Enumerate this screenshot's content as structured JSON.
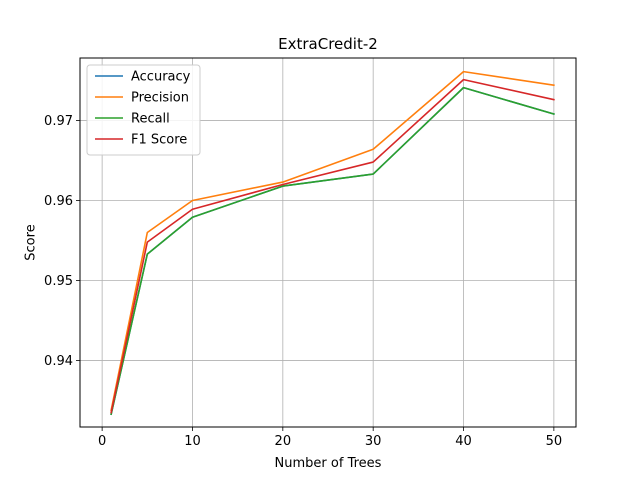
{
  "chart_data": {
    "type": "line",
    "title": "ExtraCredit-2",
    "xlabel": "Number of Trees",
    "ylabel": "Score",
    "x": [
      1,
      5,
      10,
      20,
      30,
      40,
      50
    ],
    "xlim": [
      -2.45,
      52.45
    ],
    "ylim": [
      0.9317,
      0.9778
    ],
    "xticks": [
      0,
      10,
      20,
      30,
      40,
      50
    ],
    "yticks": [
      0.94,
      0.95,
      0.96,
      0.97
    ],
    "xtick_labels": [
      "0",
      "10",
      "20",
      "30",
      "40",
      "50"
    ],
    "ytick_labels": [
      "0.94",
      "0.95",
      "0.96",
      "0.97"
    ],
    "grid": true,
    "legend_position": "top-left",
    "series": [
      {
        "name": "Accuracy",
        "color": "#1f77b4",
        "values": [
          0.9333,
          0.9533,
          0.9579,
          0.9618,
          0.9633,
          0.9741,
          0.9708
        ]
      },
      {
        "name": "Precision",
        "color": "#ff7f0e",
        "values": [
          0.9338,
          0.956,
          0.96,
          0.9623,
          0.9664,
          0.9761,
          0.9744
        ]
      },
      {
        "name": "Recall",
        "color": "#2ca02c",
        "values": [
          0.9333,
          0.9533,
          0.9579,
          0.9618,
          0.9633,
          0.9741,
          0.9708
        ]
      },
      {
        "name": "F1 Score",
        "color": "#d62728",
        "values": [
          0.9335,
          0.9548,
          0.9589,
          0.962,
          0.9648,
          0.9751,
          0.9726
        ]
      }
    ]
  }
}
